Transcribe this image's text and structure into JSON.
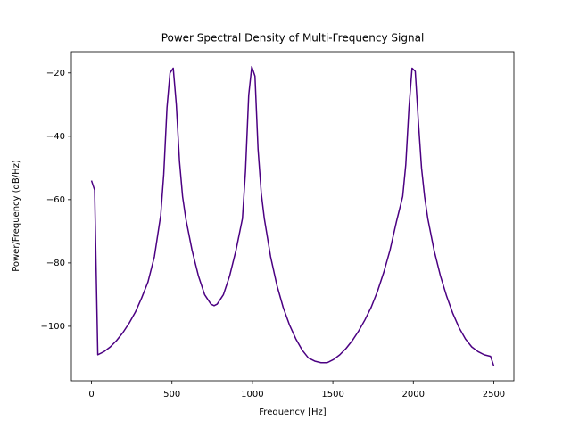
{
  "chart_data": {
    "type": "line",
    "title": "Power Spectral Density of Multi-Frequency Signal",
    "x_label": "Frequency [Hz]",
    "y_label": "Power/Frequency (dB/Hz)",
    "xlim": [
      -125,
      2625
    ],
    "ylim": [
      -117.2,
      -13.3
    ],
    "xticks": [
      0,
      500,
      1000,
      1500,
      2000,
      2500
    ],
    "yticks": [
      {
        "value": -20,
        "label": "−20"
      },
      {
        "value": -40,
        "label": "−40"
      },
      {
        "value": -60,
        "label": "−60"
      },
      {
        "value": -80,
        "label": "−80"
      },
      {
        "value": -100,
        "label": "−100"
      }
    ],
    "series": [
      {
        "color": "#4b0082",
        "x": [
          0,
          19.5,
          39,
          78,
          117,
          156,
          195,
          234,
          273,
          312,
          351,
          391,
          430,
          449,
          469,
          488,
          508,
          527,
          547,
          566,
          586,
          625,
          664,
          703,
          742,
          762,
          781,
          820,
          859,
          898,
          938,
          957,
          977,
          996,
          1016,
          1035,
          1055,
          1074,
          1113,
          1152,
          1191,
          1230,
          1270,
          1309,
          1348,
          1387,
          1426,
          1465,
          1504,
          1543,
          1582,
          1621,
          1660,
          1699,
          1738,
          1777,
          1816,
          1855,
          1895,
          1934,
          1953,
          1973,
          1992,
          2012,
          2031,
          2051,
          2070,
          2090,
          2129,
          2168,
          2207,
          2246,
          2285,
          2324,
          2363,
          2402,
          2441,
          2480,
          2500
        ],
        "values": [
          -54,
          -57,
          -109,
          -108,
          -106.5,
          -104.5,
          -102,
          -99,
          -95.5,
          -91,
          -86,
          -78,
          -65,
          -52,
          -31,
          -20,
          -18.5,
          -30,
          -48,
          -59,
          -66,
          -76,
          -84,
          -90,
          -93,
          -93.5,
          -93,
          -90,
          -84,
          -76,
          -66,
          -51,
          -27,
          -18,
          -21,
          -44,
          -58,
          -66,
          -78,
          -87,
          -94,
          -99.5,
          -104,
          -107.5,
          -110,
          -111,
          -111.5,
          -111.5,
          -110.5,
          -109,
          -107,
          -104.5,
          -101.5,
          -98,
          -94,
          -89,
          -83,
          -76,
          -67,
          -59,
          -49,
          -31,
          -18.5,
          -19.5,
          -35,
          -50,
          -59,
          -66,
          -76,
          -84,
          -90.5,
          -96,
          -100.5,
          -104,
          -106.5,
          -108,
          -109,
          -109.5,
          -112.5
        ]
      }
    ]
  }
}
